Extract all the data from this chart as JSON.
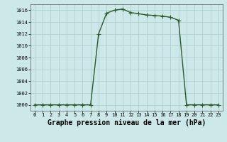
{
  "x": [
    0,
    1,
    2,
    3,
    4,
    5,
    6,
    7,
    8,
    9,
    10,
    11,
    12,
    13,
    14,
    15,
    16,
    17,
    18,
    19,
    20,
    21,
    22,
    23
  ],
  "y": [
    1000,
    1000,
    1000,
    1000,
    1000,
    1000,
    1000,
    1000,
    1012.0,
    1015.5,
    1016.0,
    1016.2,
    1015.6,
    1015.4,
    1015.2,
    1015.1,
    1015.0,
    1014.8,
    1014.3,
    1000.0,
    1000.0,
    1000.0,
    1000.0,
    1000.0
  ],
  "line_color": "#2d5a2d",
  "marker": "+",
  "marker_size": 4,
  "marker_color": "#2d5a2d",
  "bg_color": "#cce8e8",
  "grid_color": "#aacccc",
  "title": "Graphe pression niveau de la mer (hPa)",
  "ylim": [
    999,
    1017
  ],
  "xlim": [
    -0.5,
    23.5
  ],
  "yticks": [
    1000,
    1002,
    1004,
    1006,
    1008,
    1010,
    1012,
    1014,
    1016
  ],
  "xticks": [
    0,
    1,
    2,
    3,
    4,
    5,
    6,
    7,
    8,
    9,
    10,
    11,
    12,
    13,
    14,
    15,
    16,
    17,
    18,
    19,
    20,
    21,
    22,
    23
  ],
  "title_fontsize": 7,
  "tick_fontsize": 5,
  "ytick_fontsize": 5,
  "linewidth": 1.0,
  "marker_linewidth": 0.8
}
